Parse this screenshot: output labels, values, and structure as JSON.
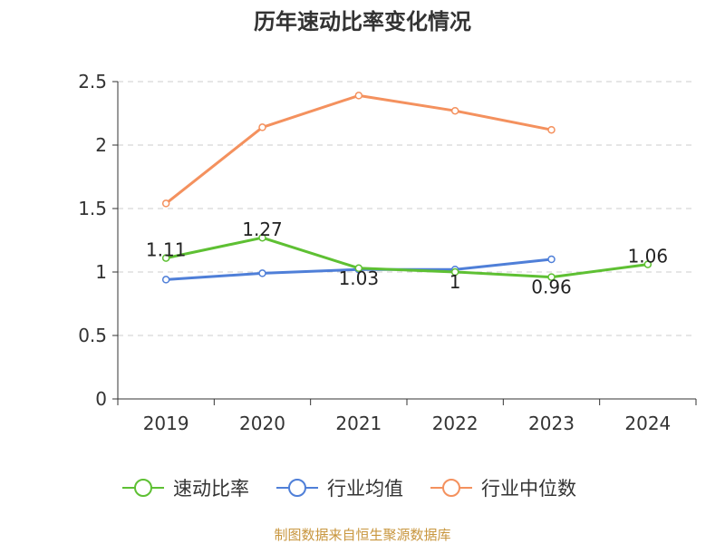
{
  "chart_data": {
    "type": "line",
    "title": "历年速动比率变化情况",
    "categories": [
      "2019",
      "2020",
      "2021",
      "2022",
      "2023",
      "2024"
    ],
    "y_ticks": [
      "0",
      "0.5",
      "1",
      "1.5",
      "2",
      "2.5"
    ],
    "ylim": [
      0,
      2.5
    ],
    "grid": true,
    "legend_position": "bottom",
    "series": [
      {
        "name": "速动比率",
        "color": "#5ec033",
        "values": [
          1.11,
          1.27,
          1.03,
          1.0,
          0.96,
          1.06
        ],
        "labels": [
          "1.11",
          "1.27",
          "1.03",
          "1",
          "0.96",
          "1.06"
        ]
      },
      {
        "name": "行业均值",
        "color": "#4f7fd8",
        "values": [
          0.94,
          0.99,
          1.02,
          1.02,
          1.1,
          null
        ],
        "labels": []
      },
      {
        "name": "行业中位数",
        "color": "#f4915e",
        "values": [
          1.54,
          2.14,
          2.39,
          2.27,
          2.12,
          null
        ],
        "labels": []
      }
    ]
  },
  "source_text": "制图数据来自恒生聚源数据库"
}
